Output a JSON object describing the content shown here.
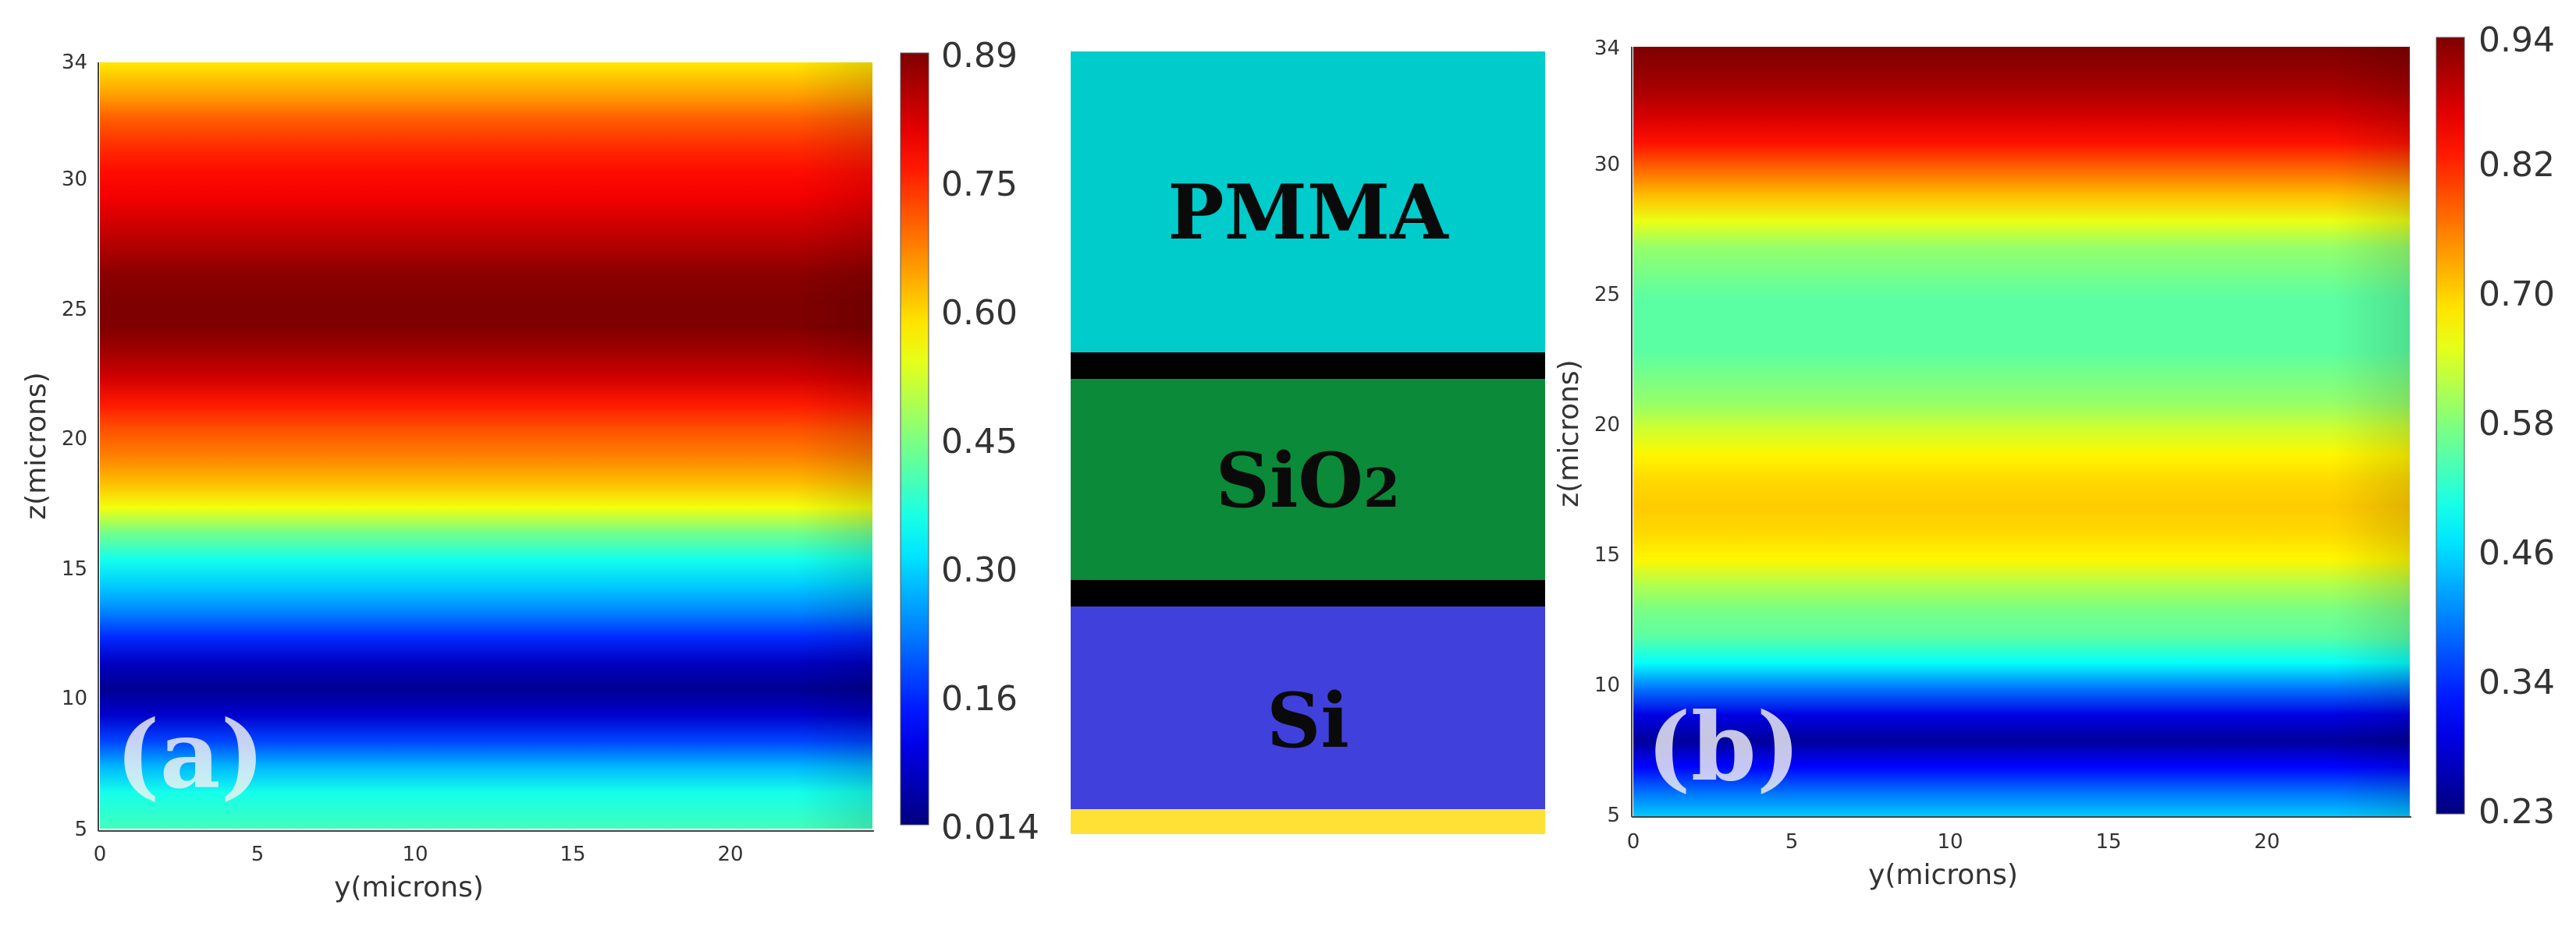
{
  "colors": {
    "jet": [
      "#00007f",
      "#0000ff",
      "#007fff",
      "#00ffff",
      "#7fff7f",
      "#ffff00",
      "#ff7f00",
      "#ff0000",
      "#7f0000"
    ],
    "pmma": "#00cccc",
    "sio2": "#0b8a3a",
    "si": "#4040dd",
    "separator": "#000000",
    "substrate": "#ffe135"
  },
  "chart_data": [
    {
      "type": "heatmap",
      "panel_label": "(a)",
      "xlabel": "y(microns)",
      "ylabel": "z(microns)",
      "xlim": [
        0,
        24.5
      ],
      "ylim": [
        4.6,
        34.2
      ],
      "x_ticks": [
        "0",
        "5",
        "10",
        "15",
        "20"
      ],
      "y_ticks": [
        "5",
        "10",
        "15",
        "20",
        "25",
        "30",
        "34"
      ],
      "colorbar": {
        "min": 0.014,
        "max": 0.89,
        "ticks": [
          "0.014",
          "0.16",
          "0.30",
          "0.45",
          "0.60",
          "0.75",
          "0.89"
        ]
      },
      "profile_z": [
        4.6,
        6,
        7,
        8,
        9,
        10,
        11,
        12,
        13,
        14,
        15,
        16,
        17,
        18,
        19,
        20,
        21,
        22,
        23,
        24,
        25,
        26,
        27,
        28,
        29,
        30,
        31,
        32,
        33,
        34.2
      ],
      "profile_value": [
        0.4,
        0.36,
        0.28,
        0.18,
        0.08,
        0.03,
        0.07,
        0.16,
        0.24,
        0.3,
        0.36,
        0.44,
        0.55,
        0.62,
        0.67,
        0.71,
        0.76,
        0.82,
        0.86,
        0.89,
        0.89,
        0.88,
        0.85,
        0.82,
        0.79,
        0.77,
        0.74,
        0.7,
        0.64,
        0.58
      ]
    },
    {
      "type": "heatmap",
      "panel_label": "(b)",
      "xlabel": "y(microns)",
      "ylabel": "z(microns)",
      "xlim": [
        0,
        24.5
      ],
      "ylim": [
        4.6,
        34.2
      ],
      "x_ticks": [
        "0",
        "5",
        "10",
        "15",
        "20"
      ],
      "y_ticks": [
        "5",
        "10",
        "15",
        "20",
        "25",
        "30",
        "34"
      ],
      "colorbar": {
        "min": 0.23,
        "max": 0.94,
        "ticks": [
          "0.23",
          "0.34",
          "0.46",
          "0.58",
          "0.70",
          "0.82",
          "0.94"
        ]
      },
      "profile_z": [
        4.6,
        5.5,
        6.5,
        7.5,
        8.5,
        9.5,
        10.5,
        11.5,
        12.5,
        13.5,
        14.5,
        15.5,
        16.5,
        17.5,
        18.5,
        19.5,
        20.5,
        21.5,
        22.5,
        23.5,
        24.5,
        25.5,
        26.5,
        27.5,
        28.5,
        29.5,
        30.5,
        31.5,
        32.5,
        33.5,
        34.2
      ],
      "profile_value": [
        0.46,
        0.4,
        0.32,
        0.25,
        0.3,
        0.4,
        0.5,
        0.56,
        0.58,
        0.62,
        0.68,
        0.7,
        0.71,
        0.7,
        0.68,
        0.64,
        0.6,
        0.58,
        0.56,
        0.56,
        0.56,
        0.58,
        0.6,
        0.66,
        0.72,
        0.78,
        0.84,
        0.88,
        0.91,
        0.93,
        0.94
      ]
    }
  ],
  "layer_diagram": {
    "layers": [
      {
        "name": "PMMA",
        "label": "PMMA"
      },
      {
        "name": "SiO2",
        "label_main": "SiO",
        "label_sub": "2"
      },
      {
        "name": "Si",
        "label": "Si"
      }
    ]
  }
}
